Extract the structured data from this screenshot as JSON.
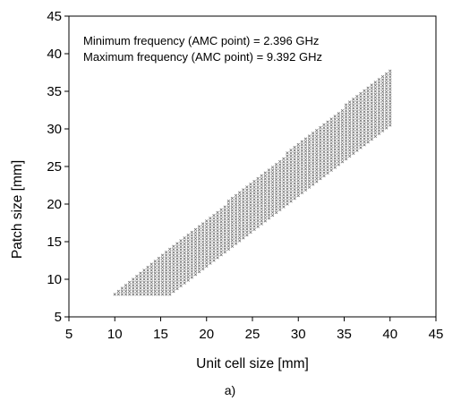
{
  "chart_data": {
    "type": "scatter",
    "title": "",
    "xlabel": "Unit cell size [mm]",
    "ylabel": "Patch size [mm]",
    "xlim": [
      5,
      45
    ],
    "ylim": [
      5,
      45
    ],
    "xticks": [
      "5",
      "10",
      "15",
      "20",
      "25",
      "30",
      "35",
      "40",
      "45"
    ],
    "yticks": [
      "5",
      "10",
      "15",
      "20",
      "25",
      "30",
      "35",
      "40",
      "45"
    ],
    "grid": false,
    "legend": "none",
    "marker": "x",
    "marker_color": "#666666",
    "annotations": [
      "Minimum frequency (AMC point) = 2.396 GHz",
      "Maximum frequency (AMC point) = 9.392 GHz"
    ],
    "caption": "a)",
    "region": {
      "description_points_x": [
        10,
        16,
        40,
        40
      ],
      "x_start": 10,
      "x_end": 40,
      "x_step": 0.4,
      "y_step": 0.4,
      "lower_boundary": [
        [
          10,
          8
        ],
        [
          16,
          8
        ],
        [
          40,
          30.5
        ]
      ],
      "upper_boundary": [
        [
          10,
          8
        ],
        [
          40,
          38
        ]
      ]
    }
  }
}
